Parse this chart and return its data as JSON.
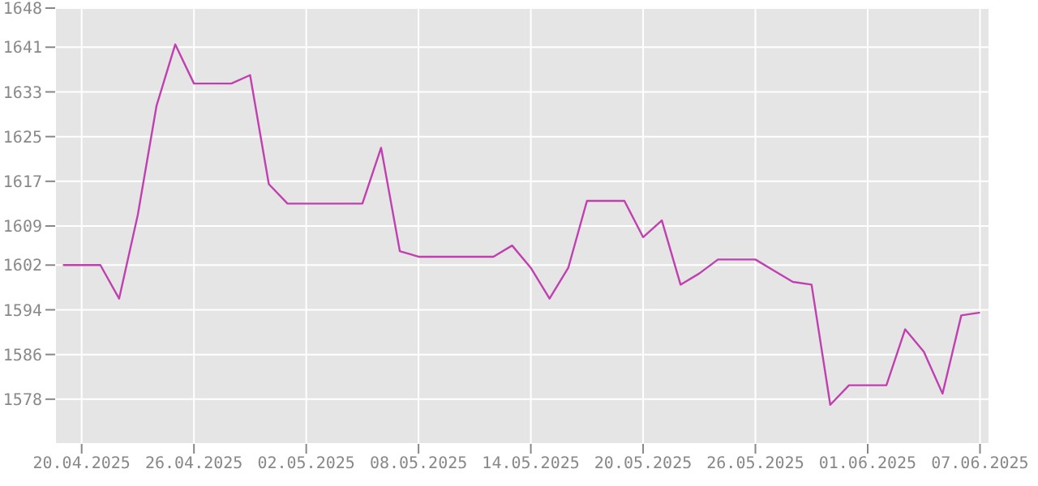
{
  "chart_data": {
    "type": "line",
    "x": [
      "2025-04-19",
      "2025-04-20",
      "2025-04-21",
      "2025-04-22",
      "2025-04-23",
      "2025-04-24",
      "2025-04-25",
      "2025-04-26",
      "2025-04-27",
      "2025-04-28",
      "2025-04-29",
      "2025-04-30",
      "2025-05-01",
      "2025-05-02",
      "2025-05-03",
      "2025-05-04",
      "2025-05-05",
      "2025-05-06",
      "2025-05-07",
      "2025-05-08",
      "2025-05-09",
      "2025-05-10",
      "2025-05-11",
      "2025-05-12",
      "2025-05-13",
      "2025-05-14",
      "2025-05-15",
      "2025-05-16",
      "2025-05-17",
      "2025-05-18",
      "2025-05-19",
      "2025-05-20",
      "2025-05-21",
      "2025-05-22",
      "2025-05-23",
      "2025-05-24",
      "2025-05-25",
      "2025-05-26",
      "2025-05-27",
      "2025-05-28",
      "2025-05-29",
      "2025-05-30",
      "2025-05-31",
      "2025-06-01",
      "2025-06-02",
      "2025-06-03",
      "2025-06-04",
      "2025-06-05",
      "2025-06-06",
      "2025-06-07"
    ],
    "series": [
      {
        "color": "#c040b0",
        "values": [
          1602,
          1602,
          1602,
          1596,
          1611,
          1630.5,
          1641.5,
          1634.5,
          1634.5,
          1634.5,
          1636,
          1616.5,
          1613,
          1613,
          1613,
          1613,
          1613,
          1623,
          1604.5,
          1603.5,
          1603.5,
          1603.5,
          1603.5,
          1603.5,
          1605.5,
          1601.5,
          1596,
          1601.5,
          1613.5,
          1613.5,
          1613.5,
          1607,
          1610,
          1598.5,
          1600.5,
          1603,
          1603,
          1603,
          1601,
          1599,
          1598.5,
          1577,
          1580.5,
          1580.5,
          1580.5,
          1590.5,
          1586.5,
          1579,
          1593,
          1593.5
        ]
      }
    ],
    "xlim": [
      "2025-04-18T14:00",
      "2025-06-07T12:00"
    ],
    "xticks": [
      {
        "value": "2025-04-20",
        "label": "20.04.2025"
      },
      {
        "value": "2025-04-26",
        "label": "26.04.2025"
      },
      {
        "value": "2025-05-02",
        "label": "02.05.2025"
      },
      {
        "value": "2025-05-08",
        "label": "08.05.2025"
      },
      {
        "value": "2025-05-14",
        "label": "14.05.2025"
      },
      {
        "value": "2025-05-20",
        "label": "20.05.2025"
      },
      {
        "value": "2025-05-26",
        "label": "26.05.2025"
      },
      {
        "value": "2025-06-01",
        "label": "01.06.2025"
      },
      {
        "value": "2025-06-07",
        "label": "07.06.2025"
      }
    ],
    "ylim": [
      1570,
      1648
    ],
    "yticks": [
      1578,
      1586,
      1594,
      1602,
      1609,
      1617,
      1625,
      1633,
      1641,
      1648
    ],
    "grid": true,
    "marker": "none",
    "line_style": "solid"
  }
}
